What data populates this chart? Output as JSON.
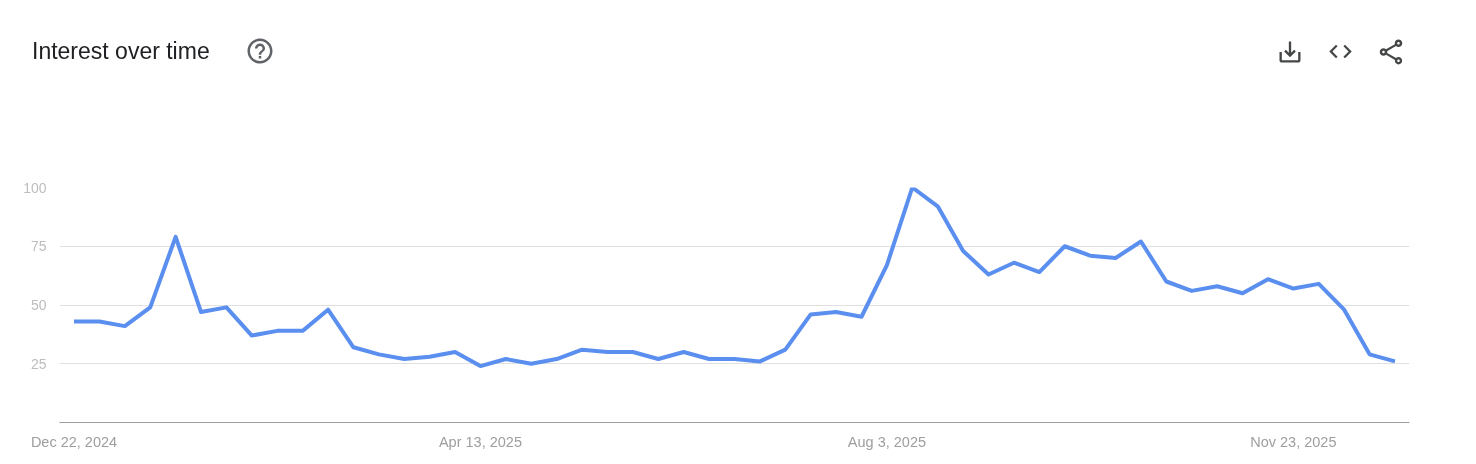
{
  "chart_data": {
    "type": "line",
    "title": "Interest over time",
    "x": [
      "2024-12-22",
      "2024-12-29",
      "2025-01-05",
      "2025-01-12",
      "2025-01-19",
      "2025-01-26",
      "2025-02-02",
      "2025-02-09",
      "2025-02-16",
      "2025-02-23",
      "2025-03-02",
      "2025-03-09",
      "2025-03-16",
      "2025-03-23",
      "2025-03-30",
      "2025-04-06",
      "2025-04-13",
      "2025-04-20",
      "2025-04-27",
      "2025-05-04",
      "2025-05-11",
      "2025-05-18",
      "2025-05-25",
      "2025-06-01",
      "2025-06-08",
      "2025-06-15",
      "2025-06-22",
      "2025-06-29",
      "2025-07-06",
      "2025-07-13",
      "2025-07-20",
      "2025-07-27",
      "2025-08-03",
      "2025-08-10",
      "2025-08-17",
      "2025-08-24",
      "2025-08-31",
      "2025-09-07",
      "2025-09-14",
      "2025-09-21",
      "2025-09-28",
      "2025-10-05",
      "2025-10-12",
      "2025-10-19",
      "2025-10-26",
      "2025-11-02",
      "2025-11-09",
      "2025-11-16",
      "2025-11-23",
      "2025-11-30",
      "2025-12-07",
      "2025-12-14",
      "2025-12-21"
    ],
    "values": [
      43,
      43,
      41,
      49,
      79,
      47,
      49,
      37,
      39,
      39,
      48,
      32,
      29,
      27,
      28,
      30,
      24,
      27,
      25,
      27,
      31,
      30,
      30,
      27,
      30,
      27,
      27,
      26,
      31,
      46,
      47,
      45,
      67,
      100,
      92,
      73,
      63,
      68,
      64,
      75,
      71,
      70,
      77,
      60,
      56,
      58,
      55,
      61,
      57,
      59,
      48,
      29,
      26
    ],
    "color": "#5a8ff0",
    "line_style": "solid",
    "xlim": [
      "2024-12-18",
      "2025-12-25"
    ],
    "xticks": [
      {
        "value": "2024-12-22",
        "label": "Dec 22, 2024"
      },
      {
        "value": "2025-04-13",
        "label": "Apr 13, 2025"
      },
      {
        "value": "2025-08-03",
        "label": "Aug 3, 2025"
      },
      {
        "value": "2025-11-23",
        "label": "Nov 23, 2025"
      }
    ],
    "ylim": [
      0,
      100
    ],
    "yticks": [
      25,
      50,
      75,
      100
    ],
    "grid": "y"
  }
}
